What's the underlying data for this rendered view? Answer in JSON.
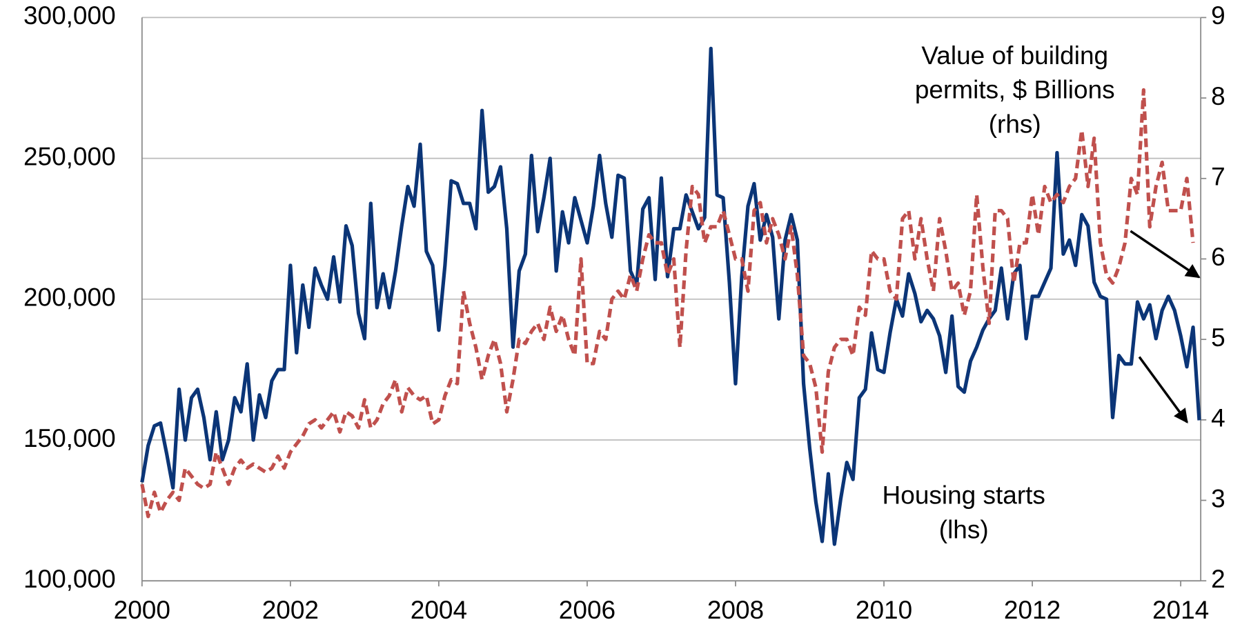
{
  "chart_data": {
    "type": "line",
    "annotations": [
      {
        "lines": [
          "Value of building",
          "permits, $ Billions",
          "(rhs)"
        ]
      },
      {
        "lines": [
          "Housing starts",
          "(lhs)"
        ]
      }
    ],
    "x": [
      2000,
      2000.083,
      2000.167,
      2000.25,
      2000.333,
      2000.417,
      2000.5,
      2000.583,
      2000.667,
      2000.75,
      2000.833,
      2000.917,
      2001,
      2001.083,
      2001.167,
      2001.25,
      2001.333,
      2001.417,
      2001.5,
      2001.583,
      2001.667,
      2001.75,
      2001.833,
      2001.917,
      2002,
      2002.083,
      2002.167,
      2002.25,
      2002.333,
      2002.417,
      2002.5,
      2002.583,
      2002.667,
      2002.75,
      2002.833,
      2002.917,
      2003,
      2003.083,
      2003.167,
      2003.25,
      2003.333,
      2003.417,
      2003.5,
      2003.583,
      2003.667,
      2003.75,
      2003.833,
      2003.917,
      2004,
      2004.083,
      2004.167,
      2004.25,
      2004.333,
      2004.417,
      2004.5,
      2004.583,
      2004.667,
      2004.75,
      2004.833,
      2004.917,
      2005,
      2005.083,
      2005.167,
      2005.25,
      2005.333,
      2005.417,
      2005.5,
      2005.583,
      2005.667,
      2005.75,
      2005.833,
      2005.917,
      2006,
      2006.083,
      2006.167,
      2006.25,
      2006.333,
      2006.417,
      2006.5,
      2006.583,
      2006.667,
      2006.75,
      2006.833,
      2006.917,
      2007,
      2007.083,
      2007.167,
      2007.25,
      2007.333,
      2007.417,
      2007.5,
      2007.583,
      2007.667,
      2007.75,
      2007.833,
      2007.917,
      2008,
      2008.083,
      2008.167,
      2008.25,
      2008.333,
      2008.417,
      2008.5,
      2008.583,
      2008.667,
      2008.75,
      2008.833,
      2008.917,
      2009,
      2009.083,
      2009.167,
      2009.25,
      2009.333,
      2009.417,
      2009.5,
      2009.583,
      2009.667,
      2009.75,
      2009.833,
      2009.917,
      2010,
      2010.083,
      2010.167,
      2010.25,
      2010.333,
      2010.417,
      2010.5,
      2010.583,
      2010.667,
      2010.75,
      2010.833,
      2010.917,
      2011,
      2011.083,
      2011.167,
      2011.25,
      2011.333,
      2011.417,
      2011.5,
      2011.583,
      2011.667,
      2011.75,
      2011.833,
      2011.917,
      2012,
      2012.083,
      2012.167,
      2012.25,
      2012.333,
      2012.417,
      2012.5,
      2012.583,
      2012.667,
      2012.75,
      2012.833,
      2012.917,
      2013,
      2013.083,
      2013.167,
      2013.25,
      2013.333,
      2013.417,
      2013.5,
      2013.583,
      2013.667,
      2013.75,
      2013.833,
      2013.917,
      2014,
      2014.083,
      2014.167,
      2014.25
    ],
    "series": [
      {
        "name": "Housing starts",
        "color": "#0b3577",
        "dash": false,
        "axis": "y",
        "values": [
          135000,
          148000,
          155000,
          156000,
          145000,
          133000,
          168000,
          150000,
          165000,
          168000,
          158000,
          143000,
          160000,
          143000,
          150000,
          165000,
          160000,
          177000,
          150000,
          166000,
          158000,
          171000,
          175000,
          175000,
          212000,
          181000,
          205000,
          190000,
          211000,
          205000,
          200000,
          215000,
          199000,
          226000,
          219000,
          195000,
          186000,
          234000,
          197000,
          209000,
          197000,
          210000,
          226000,
          240000,
          233000,
          255000,
          217000,
          212000,
          189000,
          212000,
          242000,
          241000,
          234000,
          234000,
          225000,
          267000,
          238000,
          240000,
          247000,
          225000,
          183000,
          210000,
          216000,
          251000,
          224000,
          236000,
          250000,
          210000,
          231000,
          220000,
          236000,
          228000,
          220000,
          233000,
          251000,
          234000,
          222000,
          244000,
          243000,
          210000,
          205000,
          232000,
          236000,
          207000,
          243000,
          208000,
          225000,
          225000,
          237000,
          231000,
          225000,
          229000,
          289000,
          237000,
          236000,
          206000,
          170000,
          208000,
          233000,
          241000,
          221000,
          230000,
          222000,
          193000,
          221000,
          230000,
          221000,
          170000,
          147000,
          128000,
          114000,
          138000,
          113000,
          129000,
          142000,
          136000,
          165000,
          168000,
          188000,
          175000,
          174000,
          188000,
          200000,
          194000,
          209000,
          202000,
          192000,
          196000,
          193000,
          187000,
          174000,
          194000,
          169000,
          167000,
          178000,
          183000,
          189000,
          193000,
          196000,
          211000,
          193000,
          209000,
          212000,
          186000,
          201000,
          201000,
          206000,
          211000,
          252000,
          216000,
          221000,
          212000,
          230000,
          226000,
          206000,
          201000,
          200000,
          158000,
          180000,
          177000,
          177000,
          199000,
          193000,
          198000,
          186000,
          196000,
          201000,
          196000,
          187000,
          176000,
          190000,
          157000
        ]
      },
      {
        "name": "Value of building permits, $ Billions",
        "color": "#c0504d",
        "dash": true,
        "axis": "y2",
        "values": [
          3.2,
          2.8,
          3.1,
          2.85,
          3.0,
          3.1,
          3.0,
          3.4,
          3.3,
          3.2,
          3.15,
          3.2,
          3.6,
          3.4,
          3.2,
          3.4,
          3.5,
          3.4,
          3.45,
          3.4,
          3.35,
          3.4,
          3.55,
          3.4,
          3.6,
          3.7,
          3.8,
          3.95,
          4.0,
          3.9,
          4.0,
          4.1,
          3.85,
          4.1,
          4.05,
          3.9,
          4.25,
          3.9,
          4.0,
          4.2,
          4.3,
          4.5,
          4.1,
          4.4,
          4.3,
          4.25,
          4.3,
          3.95,
          4.0,
          4.3,
          4.5,
          4.45,
          5.6,
          5.2,
          4.9,
          4.5,
          4.8,
          5.0,
          4.7,
          4.1,
          4.5,
          5.0,
          4.95,
          5.1,
          5.2,
          5.0,
          5.4,
          5.1,
          5.3,
          5.0,
          4.8,
          6.0,
          4.7,
          4.7,
          5.1,
          5.0,
          5.5,
          5.6,
          5.5,
          5.8,
          5.6,
          6.0,
          6.3,
          6.2,
          6.2,
          5.8,
          6.0,
          4.9,
          6.1,
          6.9,
          6.8,
          6.2,
          6.4,
          6.4,
          6.6,
          6.3,
          6.0,
          6.0,
          5.6,
          6.6,
          6.7,
          6.2,
          6.5,
          6.3,
          6.0,
          6.4,
          5.8,
          4.8,
          4.7,
          4.4,
          3.6,
          4.6,
          4.9,
          5.0,
          5.0,
          4.8,
          5.4,
          5.3,
          6.1,
          6.0,
          6.0,
          5.6,
          5.5,
          6.5,
          6.6,
          6.0,
          6.5,
          6.0,
          5.6,
          6.5,
          6.1,
          5.6,
          5.7,
          5.3,
          5.6,
          6.8,
          5.9,
          5.2,
          6.6,
          6.6,
          6.5,
          5.7,
          6.2,
          6.2,
          6.8,
          6.3,
          6.9,
          6.7,
          6.8,
          6.7,
          6.9,
          7.0,
          7.6,
          6.9,
          7.5,
          6.2,
          5.8,
          5.7,
          5.9,
          6.2,
          7.0,
          6.8,
          8.1,
          6.4,
          6.9,
          7.2,
          6.6,
          6.6,
          6.6,
          7.0,
          6.2,
          null
        ]
      }
    ],
    "xlim": [
      2000,
      2014.27
    ],
    "xticks": [
      2000,
      2002,
      2004,
      2006,
      2008,
      2010,
      2012,
      2014
    ],
    "ylim": [
      100000,
      300000
    ],
    "yticks": [
      {
        "value": 100000,
        "label": "100,000"
      },
      {
        "value": 150000,
        "label": "150,000"
      },
      {
        "value": 200000,
        "label": "200,000"
      },
      {
        "value": 250000,
        "label": "250,000"
      },
      {
        "value": 300000,
        "label": "300,000"
      }
    ],
    "y2lim": [
      2,
      9
    ],
    "y2ticks": [
      2,
      3,
      4,
      5,
      6,
      7,
      8,
      9
    ],
    "grid": true
  }
}
